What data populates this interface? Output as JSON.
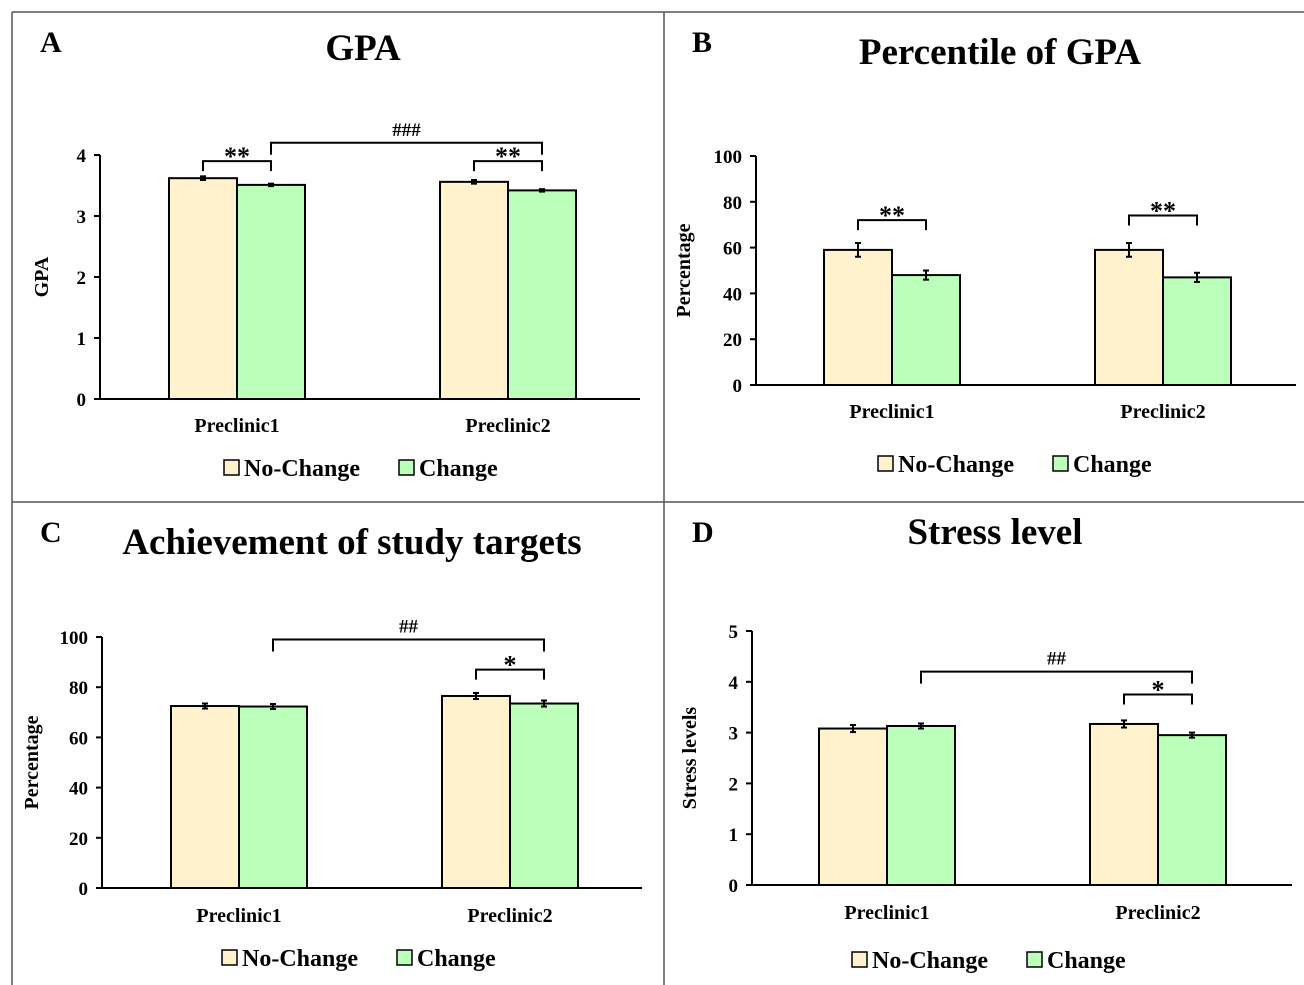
{
  "colors": {
    "no_change_fill": "#FFF2CC",
    "change_fill": "#BBFFBB",
    "stroke": "#000000",
    "divider": "#555555"
  },
  "legend": {
    "items": [
      "No-Change",
      "Change"
    ],
    "placement": "bottom-center"
  },
  "chart_data": [
    {
      "panel": "A",
      "title": "GPA",
      "type": "bar",
      "categories": [
        "Preclinic1",
        "Preclinic2"
      ],
      "series": [
        {
          "name": "No-Change",
          "values": [
            3.62,
            3.56
          ],
          "errors": [
            0.03,
            0.03
          ]
        },
        {
          "name": "Change",
          "values": [
            3.51,
            3.42
          ],
          "errors": [
            0.02,
            0.02
          ]
        }
      ],
      "ylabel": "GPA",
      "xlabel": "",
      "ylim": [
        0,
        4
      ],
      "yticks": [
        0,
        1,
        2,
        3,
        4
      ],
      "significance": [
        {
          "label": "**",
          "type": "within",
          "category": 0,
          "level": 3.9
        },
        {
          "label": "**",
          "type": "within",
          "category": 1,
          "level": 3.9
        },
        {
          "label": "###",
          "type": "across",
          "level": 4.2
        }
      ]
    },
    {
      "panel": "B",
      "title": "Percentile of GPA",
      "type": "bar",
      "categories": [
        "Preclinic1",
        "Preclinic2"
      ],
      "series": [
        {
          "name": "No-Change",
          "values": [
            59,
            59
          ],
          "errors": [
            3,
            3
          ]
        },
        {
          "name": "Change",
          "values": [
            48,
            47
          ],
          "errors": [
            2,
            2
          ]
        }
      ],
      "ylabel": "Percentage",
      "xlabel": "",
      "ylim": [
        0,
        100
      ],
      "yticks": [
        0,
        20,
        40,
        60,
        80,
        100
      ],
      "significance": [
        {
          "label": "**",
          "type": "within",
          "category": 0,
          "level": 72
        },
        {
          "label": "**",
          "type": "within",
          "category": 1,
          "level": 74
        }
      ]
    },
    {
      "panel": "C",
      "title": "Achievement of study targets",
      "type": "bar",
      "categories": [
        "Preclinic1",
        "Preclinic2"
      ],
      "series": [
        {
          "name": "No-Change",
          "values": [
            72.5,
            76.5
          ],
          "errors": [
            1,
            1.2
          ]
        },
        {
          "name": "Change",
          "values": [
            72.3,
            73.5
          ],
          "errors": [
            1,
            1.2
          ]
        }
      ],
      "ylabel": "Percentage",
      "xlabel": "",
      "ylim": [
        0,
        100
      ],
      "yticks": [
        0,
        20,
        40,
        60,
        80,
        100
      ],
      "significance": [
        {
          "label": "*",
          "type": "within",
          "category": 1,
          "level": 87
        },
        {
          "label": "##",
          "type": "across",
          "level": 99
        }
      ]
    },
    {
      "panel": "D",
      "title": "Stress level",
      "type": "bar",
      "categories": [
        "Preclinic1",
        "Preclinic2"
      ],
      "series": [
        {
          "name": "No-Change",
          "values": [
            3.08,
            3.17
          ],
          "errors": [
            0.07,
            0.07
          ]
        },
        {
          "name": "Change",
          "values": [
            3.13,
            2.95
          ],
          "errors": [
            0.05,
            0.05
          ]
        }
      ],
      "ylabel": "Stress levels",
      "xlabel": "",
      "ylim": [
        0,
        5
      ],
      "yticks": [
        0,
        1,
        2,
        3,
        4,
        5
      ],
      "significance": [
        {
          "label": "*",
          "type": "within",
          "category": 1,
          "level": 3.75
        },
        {
          "label": "##",
          "type": "across",
          "level": 4.2
        }
      ]
    }
  ]
}
